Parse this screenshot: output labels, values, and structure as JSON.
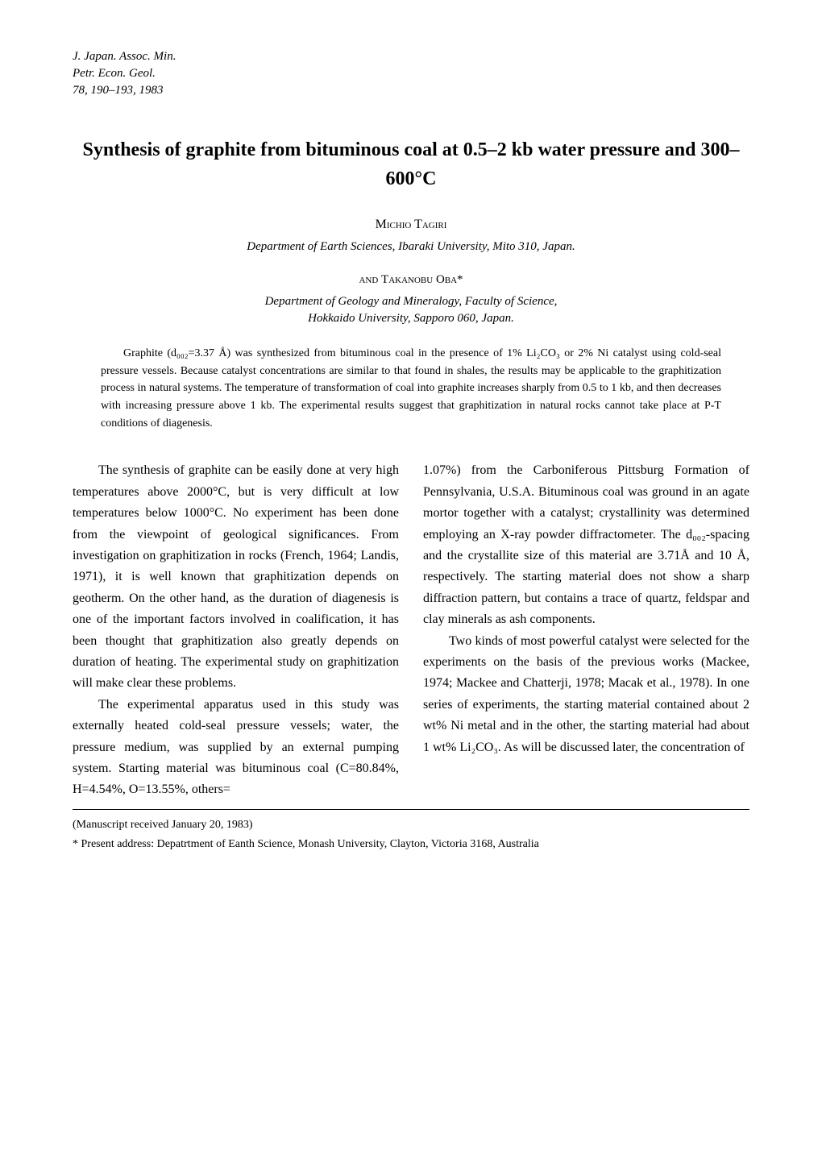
{
  "journal": {
    "line1": "J. Japan. Assoc. Min.",
    "line2": "Petr. Econ. Geol.",
    "line3": "78, 190–193, 1983"
  },
  "title": "Synthesis of graphite from bituminous coal at 0.5–2 kb water pressure and 300–600°C",
  "author1": {
    "name": "Michio Tagiri",
    "affiliation": "Department of Earth Sciences, Ibaraki University, Mito 310, Japan."
  },
  "and_label": "and",
  "author2": {
    "name": "Takanobu Oba*",
    "affiliation_line1": "Department of Geology and Mineralogy, Faculty of Science,",
    "affiliation_line2": "Hokkaido University, Sapporo 060, Japan."
  },
  "abstract": "Graphite (d₀₀₂=3.37 Å) was synthesized from bituminous coal in the presence of 1% Li₂CO₃ or 2% Ni catalyst using cold-seal pressure vessels. Because catalyst concentrations are similar to that found in shales, the results may be applicable to the graphitization process in natural systems. The temperature of transformation of coal into graphite increases sharply from 0.5 to 1 kb, and then decreases with increasing pressure above 1 kb. The experimental results suggest that graphitization in natural rocks cannot take place at P-T conditions of diagenesis.",
  "body": {
    "col1_p1": "The synthesis of graphite can be easily done at very high temperatures above 2000°C, but is very difficult at low temperatures below 1000°C. No experiment has been done from the viewpoint of geological significances. From investigation on graphitization in rocks (French, 1964; Landis, 1971), it is well known that graphitization depends on geotherm. On the other hand, as the duration of diagenesis is one of the important factors involved in coalification, it has been thought that graphitization also greatly depends on duration of heating. The experimental study on graphitization will make clear these problems.",
    "col1_p2": "The experimental apparatus used in this study was externally heated cold-seal pressure vessels; water, the pressure medium, was supplied by an external pumping system. Starting material was bituminous coal (C=80.84%, H=4.54%, O=13.55%, others=",
    "col2_p1": "1.07%) from the Carboniferous Pittsburg Formation of Pennsylvania, U.S.A. Bituminous coal was ground in an agate mortor together with a catalyst; crystallinity was determined employing an X-ray powder diffractometer. The d₀₀₂-spacing and the crystallite size of this material are 3.71Å and 10 Å, respectively. The starting material does not show a sharp diffraction pattern, but contains a trace of quartz, feldspar and clay minerals as ash components.",
    "col2_p2": "Two kinds of most powerful catalyst were selected for the experiments on the basis of the previous works (Mackee, 1974; Mackee and Chatterji, 1978; Macak et al., 1978). In one series of experiments, the starting material contained about 2 wt% Ni metal and in the other, the starting material had about 1 wt% Li₂CO₃. As will be discussed later, the concentration of"
  },
  "footnotes": {
    "received": "(Manuscript received January 20, 1983)",
    "present_address": "* Present address: Depatrtment of Eanth Science, Monash University, Clayton, Victoria 3168, Australia"
  }
}
